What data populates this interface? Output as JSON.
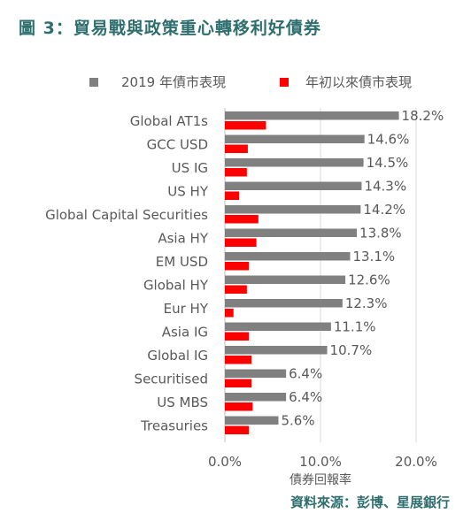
{
  "title": "圖 3：貿易戰與政策重心轉移利好債券",
  "source": "資料來源：彭博、星展銀行",
  "colors": {
    "series1": "#808080",
    "series2": "#ff0000",
    "accent": "#2f6e6e"
  },
  "chart_data": {
    "type": "bar",
    "orientation": "horizontal",
    "categories": [
      "Global AT1s",
      "GCC USD",
      "US IG",
      "US HY",
      "Global Capital Securities",
      "Asia HY",
      "EM USD",
      "Global HY",
      "Eur HY",
      "Asia IG",
      "Global IG",
      "Securitised",
      "US MBS",
      "Treasuries"
    ],
    "series": [
      {
        "name": "2019 年債市表現",
        "values": [
          18.2,
          14.6,
          14.5,
          14.3,
          14.2,
          13.8,
          13.1,
          12.6,
          12.3,
          11.1,
          10.7,
          6.4,
          6.4,
          5.6
        ]
      },
      {
        "name": "年初以來債市表現",
        "values": [
          4.3,
          2.4,
          2.3,
          1.5,
          3.5,
          3.3,
          2.5,
          2.3,
          0.9,
          2.5,
          2.8,
          2.8,
          2.9,
          2.5
        ]
      }
    ],
    "data_labels": [
      "18.2%",
      "14.6%",
      "14.5%",
      "14.3%",
      "14.2%",
      "13.8%",
      "13.1%",
      "12.6%",
      "12.3%",
      "11.1%",
      "10.7%",
      "6.4%",
      "6.4%",
      "5.6%"
    ],
    "xlim": [
      0,
      20
    ],
    "xticks": [
      "0.0%",
      "10.0%",
      "20.0%"
    ],
    "xlabel": "債券回報率",
    "legend": "top"
  }
}
